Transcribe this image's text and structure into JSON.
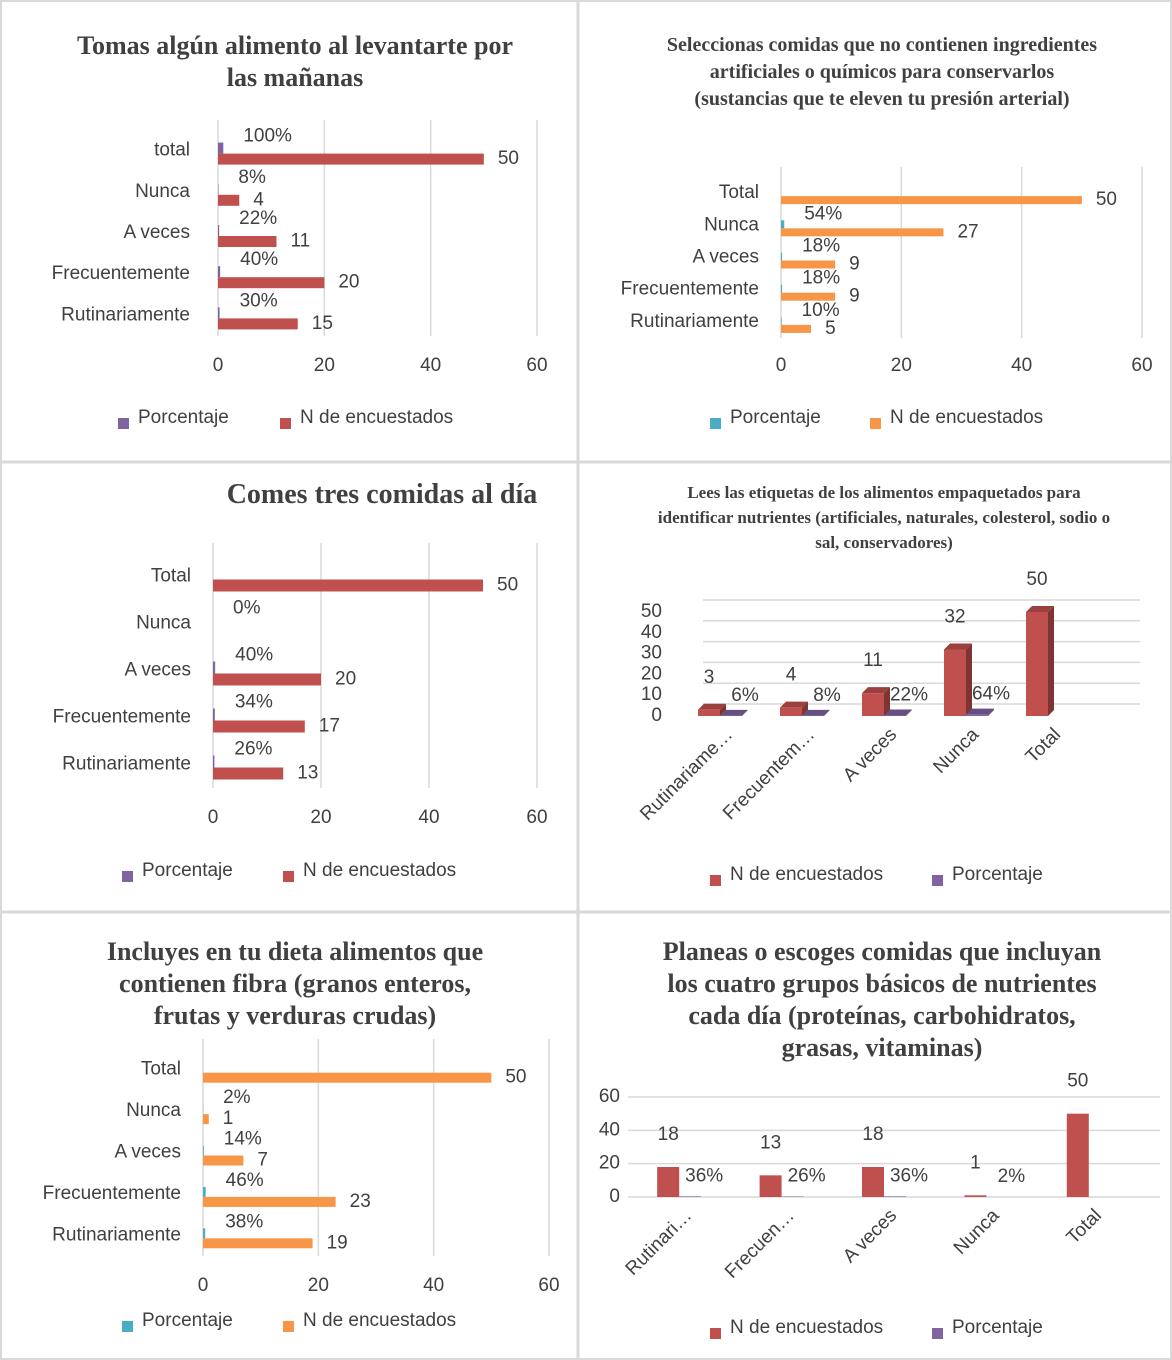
{
  "chart_data": [
    {
      "type": "bar",
      "orientation": "horizontal",
      "title": "Tomas algún alimento al levantarte por las mañanas",
      "categories": [
        "total",
        "Nunca",
        "A veces",
        "Frecuentemente",
        "Rutinariamente"
      ],
      "series": [
        {
          "name": "Porcentaje",
          "color": "#8064a2",
          "values": [
            1,
            0.08,
            0.22,
            0.4,
            0.3
          ],
          "value_labels": [
            "100%",
            "8%",
            "22%",
            "40%",
            "30%"
          ]
        },
        {
          "name": "N de encuestados",
          "color": "#c0504d",
          "values": [
            50,
            4,
            11,
            20,
            15
          ]
        }
      ],
      "xlim": [
        0,
        60
      ],
      "xticks": [
        0,
        20,
        40,
        60
      ],
      "grid": true,
      "legend": "bottom"
    },
    {
      "type": "bar",
      "orientation": "horizontal",
      "title": "Seleccionas comidas que no contienen ingredientes artificiales o químicos para conservarlos (sustancias que te eleven tu presión arterial)",
      "categories": [
        "Total",
        "Nunca",
        "A   veces",
        "Frecuentemente",
        "Rutinariamente"
      ],
      "series": [
        {
          "name": "Porcentaje",
          "color": "#4bacc6",
          "values": [
            null,
            0.54,
            0.18,
            0.18,
            0.1
          ],
          "value_labels": [
            null,
            "54%",
            "18%",
            "18%",
            "10%"
          ]
        },
        {
          "name": "N de encuestados",
          "color": "#f79646",
          "values": [
            50,
            27,
            9,
            9,
            5
          ]
        }
      ],
      "xlim": [
        0,
        60
      ],
      "xticks": [
        0,
        20,
        40,
        60
      ],
      "grid": true,
      "legend": "bottom"
    },
    {
      "type": "bar",
      "orientation": "horizontal",
      "title": "Comes tres comidas al día",
      "categories": [
        "Total",
        "Nunca",
        "A veces",
        "Frecuentemente",
        "Rutinariamente"
      ],
      "series": [
        {
          "name": "Porcentaje",
          "color": "#8064a2",
          "values": [
            null,
            0,
            0.4,
            0.34,
            0.26
          ],
          "value_labels": [
            null,
            "0%",
            "40%",
            "34%",
            "26%"
          ]
        },
        {
          "name": "N de encuestados",
          "color": "#c0504d",
          "values": [
            50,
            null,
            20,
            17,
            13
          ]
        }
      ],
      "xlim": [
        0,
        60
      ],
      "xticks": [
        0,
        20,
        40,
        60
      ],
      "grid": true,
      "legend": "bottom"
    },
    {
      "type": "bar",
      "orientation": "vertical",
      "three_d": true,
      "title": "Lees las etiquetas de los alimentos empaquetados para identificar nutrientes (artificiales, naturales, colesterol, sodio o sal, conservadores)",
      "categories": [
        "Rutinariame…",
        "Frecuentem…",
        "A veces",
        "Nunca",
        "Total"
      ],
      "series": [
        {
          "name": "N de encuestados",
          "color": "#c0504d",
          "values": [
            3,
            4,
            11,
            32,
            50
          ]
        },
        {
          "name": "Porcentaje",
          "color": "#8064a2",
          "values": [
            0.06,
            0.08,
            0.22,
            0.64,
            null
          ],
          "value_labels": [
            "6%",
            "8%",
            "22%",
            "64%",
            null
          ]
        }
      ],
      "ylim": [
        0,
        50
      ],
      "yticks": [
        0,
        10,
        20,
        30,
        40,
        50
      ],
      "grid": true,
      "legend": "bottom"
    },
    {
      "type": "bar",
      "orientation": "horizontal",
      "title": "Incluyes en tu dieta alimentos que contienen fibra (granos enteros, frutas y verduras crudas)",
      "categories": [
        "Total",
        "Nunca",
        "A veces",
        "Frecuentemente",
        "Rutinariamente"
      ],
      "series": [
        {
          "name": "Porcentaje",
          "color": "#4bacc6",
          "values": [
            null,
            0.02,
            0.14,
            0.46,
            0.38
          ],
          "value_labels": [
            null,
            "2%",
            "14%",
            "46%",
            "38%"
          ]
        },
        {
          "name": "N de encuestados",
          "color": "#f79646",
          "values": [
            50,
            1,
            7,
            23,
            19
          ]
        }
      ],
      "xlim": [
        0,
        60
      ],
      "xticks": [
        0,
        20,
        40,
        60
      ],
      "grid": true,
      "legend": "bottom"
    },
    {
      "type": "bar",
      "orientation": "vertical",
      "title": "Planeas o escoges comidas que incluyan los cuatro grupos básicos de nutrientes cada día (proteínas, carbohidratos, grasas, vitaminas)",
      "categories": [
        "Rutinari…",
        "Frecuen…",
        "A veces",
        "Nunca",
        "Total"
      ],
      "series": [
        {
          "name": "N de encuestados",
          "color": "#c0504d",
          "values": [
            18,
            13,
            18,
            1,
            50
          ]
        },
        {
          "name": "Porcentaje",
          "color": "#8064a2",
          "values": [
            0.36,
            0.26,
            0.36,
            0.02,
            null
          ],
          "value_labels": [
            "36%",
            "26%",
            "36%",
            "2%",
            null
          ]
        }
      ],
      "ylim": [
        0,
        60
      ],
      "yticks": [
        0,
        20,
        40,
        60
      ],
      "grid": true,
      "legend": "bottom"
    }
  ]
}
